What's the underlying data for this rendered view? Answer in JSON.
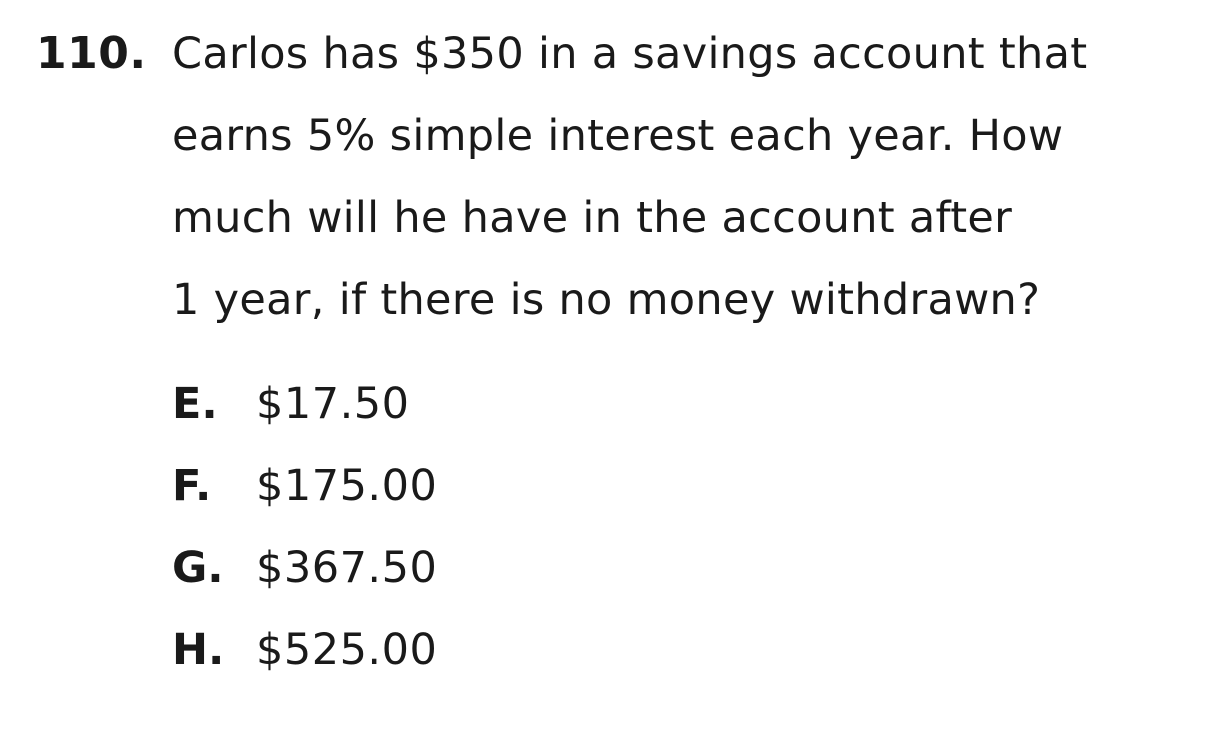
{
  "question": {
    "number": "110.",
    "lines": [
      "Carlos has $350 in a savings account that",
      "earns 5% simple interest each year. How",
      "much will he have in the account after",
      "1 year, if there is no money withdrawn?"
    ]
  },
  "choices": [
    {
      "letter": "E.",
      "text": "$17.50"
    },
    {
      "letter": "F.",
      "text": "$175.00"
    },
    {
      "letter": "G.",
      "text": "$367.50"
    },
    {
      "letter": "H.",
      "text": "$525.00"
    }
  ]
}
